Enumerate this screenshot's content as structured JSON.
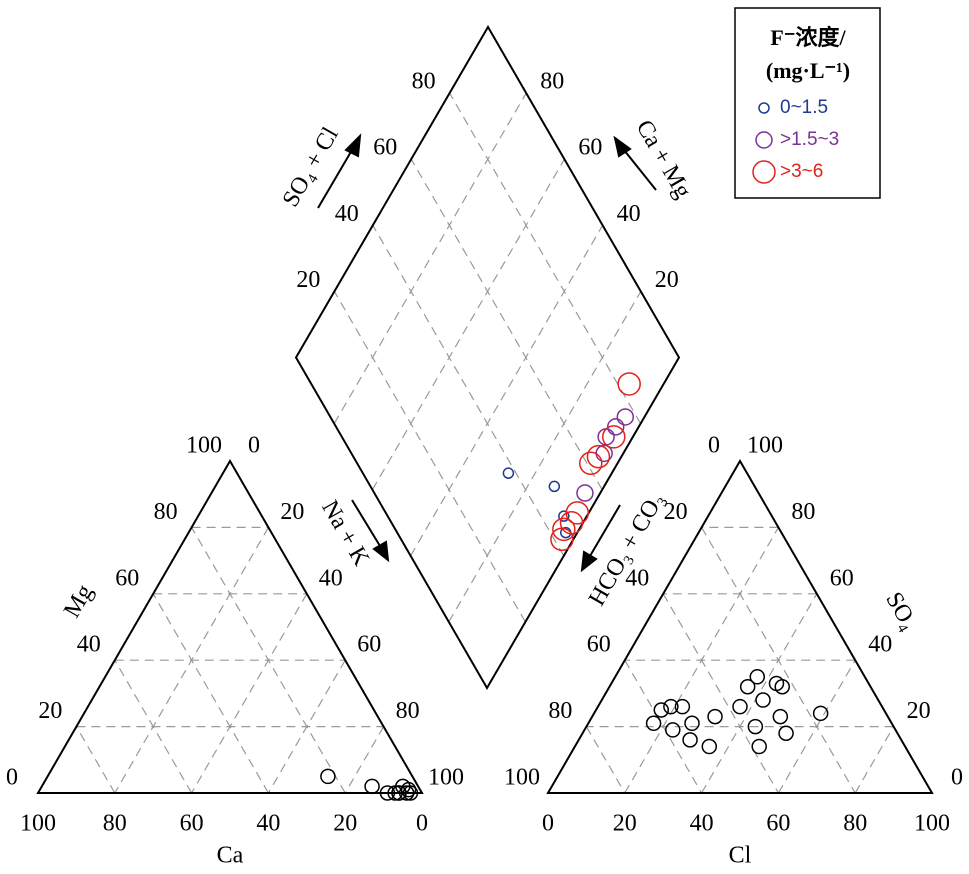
{
  "chart_data": {
    "type": "piper",
    "legend": {
      "title": "F⁻浓度/",
      "subtitle": "(mg·L⁻¹)"
    },
    "cation_triangle": {
      "x_label": "Ca",
      "y_label": "Mg",
      "ca_ticks": [
        100,
        80,
        60,
        40,
        20,
        0
      ],
      "mg_ticks": [
        0,
        20,
        40,
        60,
        80,
        100
      ],
      "na_k_ticks": [
        0,
        20,
        40,
        60,
        80,
        100
      ],
      "color": "#000000",
      "points": {
        "ca": [
          22,
          12,
          9,
          7,
          6,
          4,
          4,
          3,
          6,
          3
        ],
        "mg": [
          5,
          2,
          0,
          0,
          0,
          2,
          0,
          0,
          0,
          1
        ]
      }
    },
    "anion_triangle": {
      "x_label": "Cl",
      "y_label": "SO₄",
      "cl_ticks": [
        0,
        20,
        40,
        60,
        80,
        100
      ],
      "so4_ticks": [
        100,
        80,
        60,
        40,
        20,
        0
      ],
      "hco3_co3_ticks": [
        0,
        20,
        40,
        60,
        80,
        100
      ],
      "color": "#000000",
      "points": {
        "cl": [
          17,
          17,
          19,
          22,
          23,
          27,
          29,
          35,
          32,
          37,
          36,
          37,
          43,
          45,
          42,
          44,
          48,
          49,
          53,
          59
        ],
        "so4": [
          21,
          25,
          26,
          26,
          19,
          21,
          16,
          14,
          23,
          26,
          32,
          35,
          33,
          32,
          28,
          20,
          14,
          23,
          18,
          24
        ]
      }
    },
    "diamond": {
      "so4_cl_label": "SO₄ + Cl",
      "ca_mg_label": "Ca + Mg",
      "na_k_label": "Na + K",
      "hco3_co3_label": "HCO₃ + CO₃",
      "so4_cl_ticks": [
        20,
        40,
        60,
        80
      ],
      "ca_mg_ticks": [
        80,
        60,
        40,
        20
      ],
      "series": [
        {
          "name": "0~1.5",
          "color": "#1f3a93",
          "so4_cl": [
            38,
            48,
            46,
            44
          ],
          "ca_mg": [
            27,
            13,
            6,
            3
          ]
        },
        {
          "name": ">1.5~3",
          "color": "#7b3294",
          "so4_cl": [
            77,
            73,
            69,
            66,
            55
          ],
          "ca_mg": [
            5,
            6,
            7,
            5,
            4
          ]
        },
        {
          "name": ">3~6",
          "color": "#e3201b",
          "so4_cl": [
            83,
            71,
            64,
            61,
            50,
            47,
            44,
            42
          ],
          "ca_mg": [
            9,
            5,
            6,
            7,
            3,
            3,
            4,
            3
          ]
        }
      ]
    }
  }
}
